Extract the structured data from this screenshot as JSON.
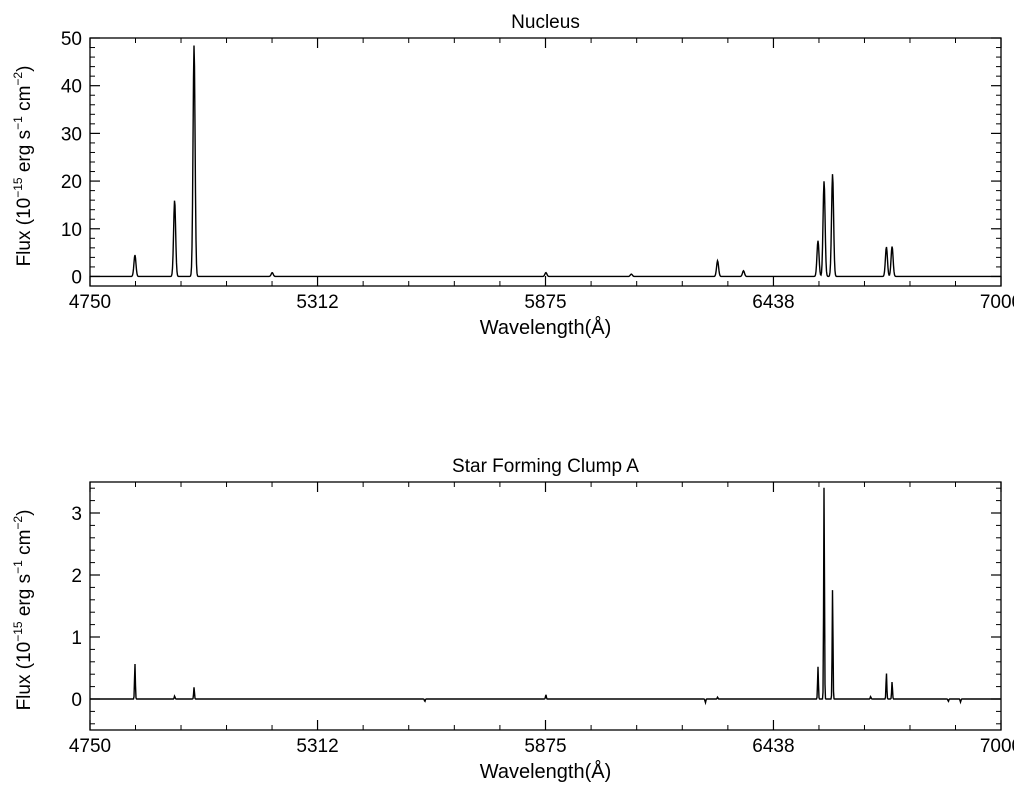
{
  "chart_data": [
    {
      "type": "line",
      "title": "Nucleus",
      "xlabel": "Wavelength(Å)",
      "ylabel": {
        "prefix": "Flux (10",
        "exp1": "−15",
        "mid1": " erg  s",
        "exp2": "−1",
        "mid2": "  cm",
        "exp3": "−2",
        "suffix": ")"
      },
      "xlim": [
        4750,
        7000
      ],
      "ylim": [
        -2,
        50
      ],
      "xticks": [
        "4750",
        "5312",
        "5875",
        "6438",
        "7000"
      ],
      "yticks": [
        "0",
        "10",
        "20",
        "30",
        "40",
        "50"
      ],
      "baseline": 0,
      "series": [
        {
          "lines": [
            {
              "x": 4861,
              "y": 4.5,
              "w": 2.5
            },
            {
              "x": 4959,
              "y": 16,
              "w": 2.5
            },
            {
              "x": 5007,
              "y": 48.5,
              "w": 2.5
            },
            {
              "x": 5200,
              "y": 0.8,
              "w": 2.5
            },
            {
              "x": 5876,
              "y": 0.8,
              "w": 2.5
            },
            {
              "x": 6087,
              "y": 0.5,
              "w": 2.5
            },
            {
              "x": 6300,
              "y": 3.3,
              "w": 2.5
            },
            {
              "x": 6364,
              "y": 1.2,
              "w": 2.5
            },
            {
              "x": 6548,
              "y": 7.5,
              "w": 2.5
            },
            {
              "x": 6563,
              "y": 20,
              "w": 2.5
            },
            {
              "x": 6584,
              "y": 21.5,
              "w": 2.5
            },
            {
              "x": 6717,
              "y": 6.2,
              "w": 2.5
            },
            {
              "x": 6731,
              "y": 6.3,
              "w": 2.5
            }
          ]
        }
      ]
    },
    {
      "type": "line",
      "title": "Star Forming Clump A",
      "xlabel": "Wavelength(Å)",
      "ylabel": {
        "prefix": "Flux (10",
        "exp1": "−15",
        "mid1": " erg  s",
        "exp2": "−1",
        "mid2": "  cm",
        "exp3": "−2",
        "suffix": ")"
      },
      "xlim": [
        4750,
        7000
      ],
      "ylim": [
        -0.5,
        3.5
      ],
      "xticks": [
        "4750",
        "5312",
        "5875",
        "6438",
        "7000"
      ],
      "yticks": [
        "0",
        "1",
        "2",
        "3"
      ],
      "baseline": 0,
      "series": [
        {
          "lines": [
            {
              "x": 4861,
              "y": 0.57,
              "w": 1.0
            },
            {
              "x": 4959,
              "y": 0.05,
              "w": 1.0
            },
            {
              "x": 5007,
              "y": 0.19,
              "w": 1.0
            },
            {
              "x": 5577,
              "y": -0.04,
              "w": 1.0
            },
            {
              "x": 5876,
              "y": 0.07,
              "w": 1.0
            },
            {
              "x": 6270,
              "y": -0.06,
              "w": 1.0
            },
            {
              "x": 6300,
              "y": 0.03,
              "w": 1.0
            },
            {
              "x": 6548,
              "y": 0.52,
              "w": 1.0
            },
            {
              "x": 6563,
              "y": 3.45,
              "w": 1.0
            },
            {
              "x": 6584,
              "y": 1.78,
              "w": 1.0
            },
            {
              "x": 6678,
              "y": 0.04,
              "w": 1.0
            },
            {
              "x": 6717,
              "y": 0.42,
              "w": 1.0
            },
            {
              "x": 6731,
              "y": 0.28,
              "w": 1.0
            },
            {
              "x": 6870,
              "y": -0.04,
              "w": 1.0
            },
            {
              "x": 6900,
              "y": -0.05,
              "w": 1.0
            }
          ]
        }
      ]
    }
  ]
}
